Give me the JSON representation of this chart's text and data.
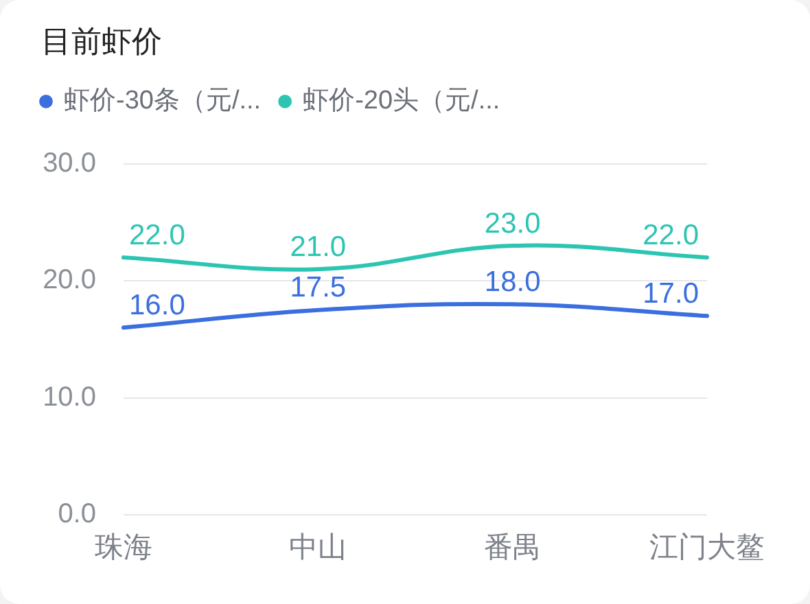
{
  "chart_data": {
    "type": "line",
    "title": "目前虾价",
    "categories": [
      "珠海",
      "中山",
      "番禺",
      "江门大鳌"
    ],
    "series": [
      {
        "name": "虾价-30条（元/...",
        "color": "#3b6fdf",
        "values": [
          16,
          17.5,
          18,
          17
        ],
        "value_labels": [
          "16.0",
          "17.5",
          "18.0",
          "17.0"
        ]
      },
      {
        "name": "虾价-20头（元/...",
        "color": "#2cc5b2",
        "values": [
          22,
          21,
          23,
          22
        ],
        "value_labels": [
          "22.0",
          "21.0",
          "23.0",
          "22.0"
        ]
      }
    ],
    "ylim": [
      0,
      30
    ],
    "yticks": [
      {
        "value": 0,
        "label": "0.0"
      },
      {
        "value": 10,
        "label": "10.0"
      },
      {
        "value": 20,
        "label": "20.0"
      },
      {
        "value": 30,
        "label": "30.0"
      }
    ],
    "grid": "y",
    "legend": "top left",
    "marker": "none",
    "line_style": "solid"
  }
}
